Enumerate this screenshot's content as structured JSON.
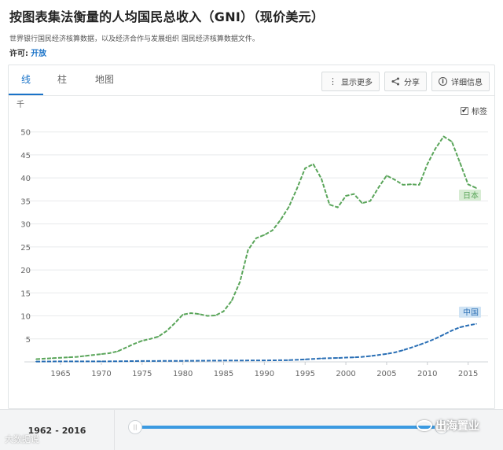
{
  "page": {
    "title": "按图表集法衡量的人均国民总收入（GNI）（现价美元）",
    "description": "世界银行国民经济核算数据，以及经济合作与发展组织 国民经济核算数据文件。",
    "license_label": "许可:",
    "license_value": "开放"
  },
  "tabs": [
    {
      "label": "线",
      "active": true
    },
    {
      "label": "柱",
      "active": false
    },
    {
      "label": "地图",
      "active": false
    }
  ],
  "actions": {
    "more": "显示更多",
    "share": "分享",
    "details": "详细信息"
  },
  "labels_toggle": {
    "label": "标签",
    "checked": true
  },
  "range": {
    "start": "1962",
    "sep": "-",
    "end": "2016"
  },
  "watermarks": {
    "left": "大数据说",
    "right": "出海置业"
  },
  "colors": {
    "japan": "#5aa55a",
    "china": "#2a6fb5",
    "grid": "#e8eaec",
    "axis_text": "#666666",
    "accent": "#1a73c8"
  },
  "chart_data": {
    "type": "line",
    "unit_label": "千",
    "x_ticks": [
      1965,
      1970,
      1975,
      1980,
      1985,
      1990,
      1995,
      2000,
      2005,
      2010,
      2015
    ],
    "y_ticks": [
      5,
      10,
      15,
      20,
      25,
      30,
      35,
      40,
      45,
      50
    ],
    "xlim": [
      1962,
      2016
    ],
    "ylim": [
      0,
      52
    ],
    "grid": true,
    "series": [
      {
        "name": "日本",
        "color": "#5aa55a",
        "x": [
          1962,
          1963,
          1964,
          1965,
          1966,
          1967,
          1968,
          1969,
          1970,
          1971,
          1972,
          1973,
          1974,
          1975,
          1976,
          1977,
          1978,
          1979,
          1980,
          1981,
          1982,
          1983,
          1984,
          1985,
          1986,
          1987,
          1988,
          1989,
          1990,
          1991,
          1992,
          1993,
          1994,
          1995,
          1996,
          1997,
          1998,
          1999,
          2000,
          2001,
          2002,
          2003,
          2004,
          2005,
          2006,
          2007,
          2008,
          2009,
          2010,
          2011,
          2012,
          2013,
          2014,
          2015,
          2016
        ],
        "values": [
          0.6,
          0.7,
          0.8,
          0.9,
          1.0,
          1.1,
          1.3,
          1.5,
          1.7,
          1.9,
          2.3,
          3.1,
          3.9,
          4.6,
          5.0,
          5.5,
          6.7,
          8.4,
          10.3,
          10.6,
          10.4,
          10.0,
          10.1,
          11.0,
          13.3,
          17.4,
          24.3,
          26.9,
          27.6,
          28.6,
          30.9,
          33.7,
          37.7,
          42.1,
          43.0,
          39.8,
          34.2,
          33.6,
          36.1,
          36.5,
          34.5,
          35.0,
          37.9,
          40.5,
          39.6,
          38.5,
          38.6,
          38.5,
          43.0,
          46.4,
          49.0,
          47.9,
          43.3,
          38.6,
          37.8
        ]
      },
      {
        "name": "中国",
        "color": "#2a6fb5",
        "x": [
          1962,
          1965,
          1970,
          1975,
          1980,
          1985,
          1990,
          1993,
          1995,
          1997,
          1998,
          1999,
          2000,
          2001,
          2002,
          2003,
          2004,
          2005,
          2006,
          2007,
          2008,
          2009,
          2010,
          2011,
          2012,
          2013,
          2014,
          2015,
          2016
        ],
        "values": [
          0.07,
          0.1,
          0.11,
          0.18,
          0.22,
          0.29,
          0.33,
          0.38,
          0.54,
          0.75,
          0.8,
          0.86,
          0.94,
          1.0,
          1.1,
          1.27,
          1.5,
          1.74,
          2.06,
          2.54,
          3.1,
          3.69,
          4.34,
          5.06,
          5.94,
          6.8,
          7.52,
          7.94,
          8.26
        ]
      }
    ]
  }
}
